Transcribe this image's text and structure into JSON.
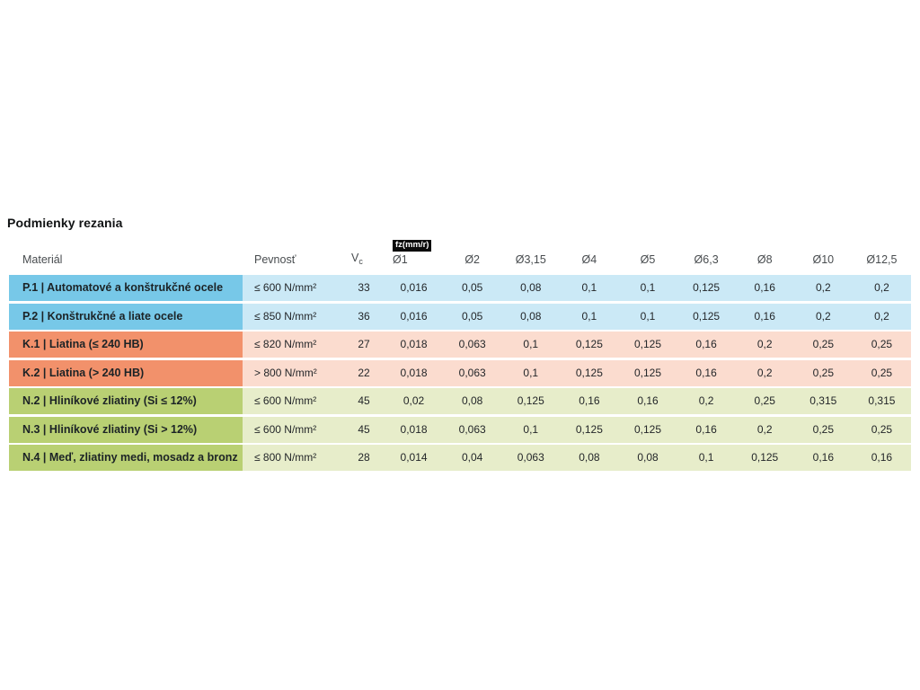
{
  "page": {
    "title": "Podmienky rezania"
  },
  "table": {
    "headers": {
      "material": "Materiál",
      "strength": "Pevnosť",
      "vc_label": "V",
      "vc_sub": "c",
      "fz_badge": "fz(mm/r)",
      "diameters": [
        "Ø1",
        "Ø2",
        "Ø3,15",
        "Ø4",
        "Ø5",
        "Ø6,3",
        "Ø8",
        "Ø10",
        "Ø12,5"
      ]
    },
    "colors": {
      "steel": {
        "dark": "#77C8E8",
        "light": "#CBE9F6"
      },
      "cast": {
        "dark": "#F2916B",
        "light": "#FBDCCF"
      },
      "nonferrous": {
        "dark": "#B9D073",
        "light": "#E7EDCA"
      }
    },
    "rows": [
      {
        "group": "steel",
        "material": "P.1 | Automatové a konštrukčné ocele",
        "strength": "≤ 600 N/mm²",
        "vc": "33",
        "fz": [
          "0,016",
          "0,05",
          "0,08",
          "0,1",
          "0,1",
          "0,125",
          "0,16",
          "0,2",
          "0,2"
        ]
      },
      {
        "group": "steel",
        "material": "P.2 | Konštrukčné a liate ocele",
        "strength": "≤ 850 N/mm²",
        "vc": "36",
        "fz": [
          "0,016",
          "0,05",
          "0,08",
          "0,1",
          "0,1",
          "0,125",
          "0,16",
          "0,2",
          "0,2"
        ]
      },
      {
        "group": "cast",
        "material": "K.1 | Liatina (≤ 240 HB)",
        "strength": "≤ 820 N/mm²",
        "vc": "27",
        "fz": [
          "0,018",
          "0,063",
          "0,1",
          "0,125",
          "0,125",
          "0,16",
          "0,2",
          "0,25",
          "0,25"
        ]
      },
      {
        "group": "cast",
        "material": "K.2 | Liatina (> 240 HB)",
        "strength": "> 800 N/mm²",
        "vc": "22",
        "fz": [
          "0,018",
          "0,063",
          "0,1",
          "0,125",
          "0,125",
          "0,16",
          "0,2",
          "0,25",
          "0,25"
        ]
      },
      {
        "group": "nonferrous",
        "material": "N.2 | Hliníkové zliatiny (Si ≤ 12%)",
        "strength": "≤ 600 N/mm²",
        "vc": "45",
        "fz": [
          "0,02",
          "0,08",
          "0,125",
          "0,16",
          "0,16",
          "0,2",
          "0,25",
          "0,315",
          "0,315"
        ]
      },
      {
        "group": "nonferrous",
        "material": "N.3 | Hliníkové zliatiny (Si > 12%)",
        "strength": "≤ 600 N/mm²",
        "vc": "45",
        "fz": [
          "0,018",
          "0,063",
          "0,1",
          "0,125",
          "0,125",
          "0,16",
          "0,2",
          "0,25",
          "0,25"
        ]
      },
      {
        "group": "nonferrous",
        "material": "N.4 | Meď, zliatiny medi, mosadz a bronz",
        "strength": "≤ 800 N/mm²",
        "vc": "28",
        "fz": [
          "0,014",
          "0,04",
          "0,063",
          "0,08",
          "0,08",
          "0,1",
          "0,125",
          "0,16",
          "0,16"
        ]
      }
    ]
  }
}
